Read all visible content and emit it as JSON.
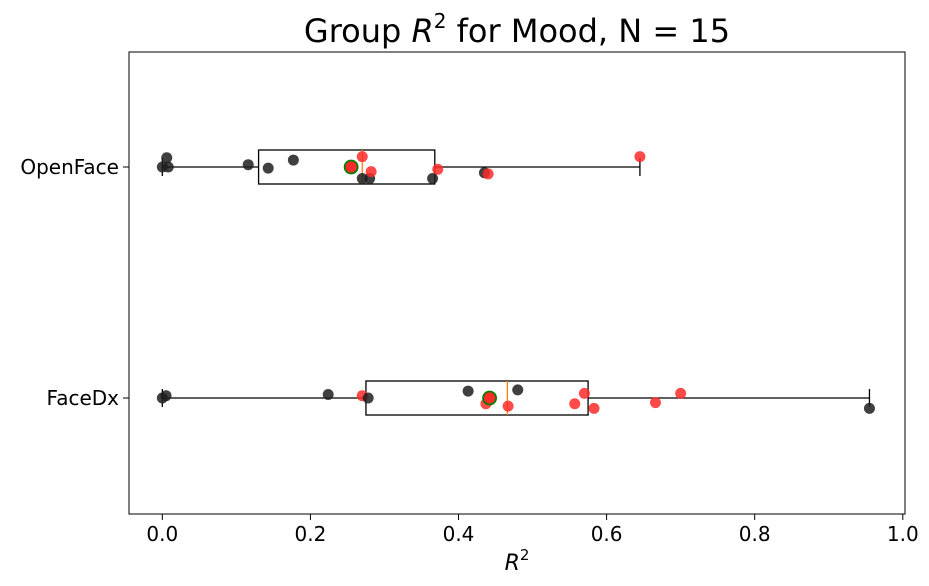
{
  "chart_data": {
    "type": "box",
    "orientation": "horizontal",
    "title_prefix": "Group ",
    "title_var": "R",
    "title_sup": "2",
    "title_suffix": " for Mood, N = 15",
    "xlabel_var": "R",
    "xlabel_sup": "2",
    "xlim": [
      -0.045,
      1.003
    ],
    "xticks": [
      0.0,
      0.2,
      0.4,
      0.6,
      0.8,
      1.0
    ],
    "xtick_labels": [
      "0.0",
      "0.2",
      "0.4",
      "0.6",
      "0.8",
      "1.0"
    ],
    "grid": false,
    "colors": {
      "box": "#000000",
      "median": "#ff7f0e",
      "point_black": "#1f1f1f",
      "point_red": "#ff2a2a",
      "mean_fill": "#ff2a2a",
      "mean_edge": "#008000"
    },
    "groups": [
      {
        "label": "OpenFace",
        "whisker_low": 0.0,
        "q1": 0.13,
        "median": 0.27,
        "q3": 0.368,
        "whisker_high": 0.645,
        "mean": 0.255,
        "points": [
          {
            "x": 0.0,
            "jitter": 0.0,
            "color": "black"
          },
          {
            "x": 0.006,
            "jitter": 0.04,
            "color": "black"
          },
          {
            "x": 0.008,
            "jitter": 0.0,
            "color": "black"
          },
          {
            "x": 0.116,
            "jitter": 0.01,
            "color": "black"
          },
          {
            "x": 0.143,
            "jitter": -0.005,
            "color": "black"
          },
          {
            "x": 0.177,
            "jitter": 0.03,
            "color": "black"
          },
          {
            "x": 0.27,
            "jitter": -0.05,
            "color": "black"
          },
          {
            "x": 0.27,
            "jitter": 0.045,
            "color": "red"
          },
          {
            "x": 0.28,
            "jitter": -0.05,
            "color": "black"
          },
          {
            "x": 0.282,
            "jitter": -0.02,
            "color": "red"
          },
          {
            "x": 0.365,
            "jitter": -0.05,
            "color": "black"
          },
          {
            "x": 0.372,
            "jitter": -0.01,
            "color": "red"
          },
          {
            "x": 0.435,
            "jitter": -0.025,
            "color": "black"
          },
          {
            "x": 0.44,
            "jitter": -0.03,
            "color": "red"
          },
          {
            "x": 0.645,
            "jitter": 0.045,
            "color": "red"
          }
        ]
      },
      {
        "label": "FaceDx",
        "whisker_low": 0.0,
        "q1": 0.275,
        "median": 0.466,
        "q3": 0.575,
        "whisker_high": 0.955,
        "mean": 0.442,
        "points": [
          {
            "x": 0.0,
            "jitter": 0.0,
            "color": "black"
          },
          {
            "x": 0.005,
            "jitter": 0.01,
            "color": "black"
          },
          {
            "x": 0.224,
            "jitter": 0.015,
            "color": "black"
          },
          {
            "x": 0.27,
            "jitter": 0.01,
            "color": "red"
          },
          {
            "x": 0.278,
            "jitter": 0.0,
            "color": "black"
          },
          {
            "x": 0.413,
            "jitter": 0.03,
            "color": "black"
          },
          {
            "x": 0.437,
            "jitter": -0.025,
            "color": "red"
          },
          {
            "x": 0.467,
            "jitter": -0.035,
            "color": "red"
          },
          {
            "x": 0.48,
            "jitter": 0.035,
            "color": "black"
          },
          {
            "x": 0.557,
            "jitter": -0.025,
            "color": "red"
          },
          {
            "x": 0.57,
            "jitter": 0.02,
            "color": "red"
          },
          {
            "x": 0.583,
            "jitter": -0.045,
            "color": "red"
          },
          {
            "x": 0.666,
            "jitter": -0.02,
            "color": "red"
          },
          {
            "x": 0.7,
            "jitter": 0.02,
            "color": "red"
          },
          {
            "x": 0.955,
            "jitter": -0.045,
            "color": "black"
          }
        ]
      }
    ]
  }
}
